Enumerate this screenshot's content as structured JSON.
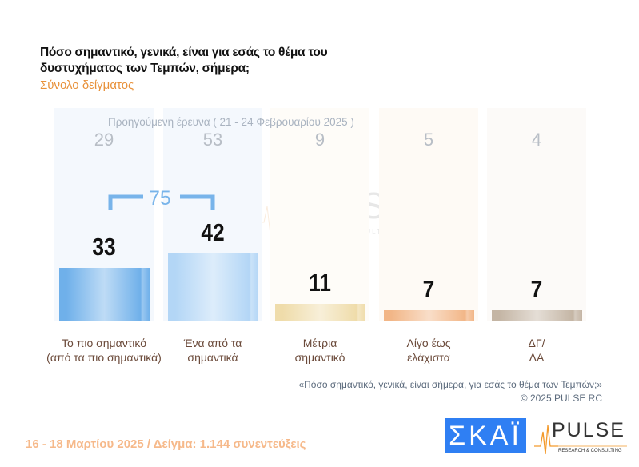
{
  "title": "Πόσο σημαντικό, γενικά, είναι για εσάς το θέμα του δυστυχήματος των Τεμπών, σήμερα;",
  "subtitle": "Σύνολο δείγματος",
  "chart_data": {
    "type": "bar",
    "title": "Πόσο σημαντικό, γενικά, είναι για εσάς το θέμα του δυστυχήματος των Τεμπών, σήμερα;",
    "categories": [
      [
        "Το πιο σημαντικό",
        "(από τα πιο σημαντικά)"
      ],
      [
        "Ένα από τα",
        "σημαντικά"
      ],
      [
        "Μέτρια",
        "σημαντικό"
      ],
      [
        "Λίγο έως",
        "ελάχιστα"
      ],
      [
        "ΔΓ/",
        "ΔΑ"
      ]
    ],
    "series": [
      {
        "name": "16 - 18 Μαρτίου 2025",
        "values": [
          33,
          42,
          11,
          7,
          7
        ]
      },
      {
        "name": "Προηγούμενη έρευνα ( 21 - 24 Φεβρουαρίου 2025 )",
        "values": [
          29,
          53,
          9,
          5,
          4
        ]
      }
    ],
    "previous_label": "Προηγούμενη έρευνα ( 21 - 24 Φεβρουαρίου 2025 )",
    "combined_first_two": "75",
    "colors": [
      "#6fb0ea",
      "#b3d6f6",
      "#efdcaa",
      "#f2b687",
      "#c4b5a4"
    ],
    "bg_colors": [
      "#f4f8fd",
      "#f4f8fd",
      "#fefcf8",
      "#fefaf5",
      "#fcfaf8"
    ],
    "ylim": [
      0,
      100
    ]
  },
  "note": {
    "question": "«Πόσο σημαντικό, γενικά, είναι σήμερα, για εσάς το θέμα των Τεμπών;»",
    "copyright": "©  2025  PULSE RC"
  },
  "footer": "16 - 18 Μαρτίου 2025  /  Δείγμα:  1.144 συνεντεύξεις",
  "logos": {
    "skai": "ΣΚΑΪ",
    "pulse": "PULSE",
    "pulse_sub": "RESEARCH & CONSULTING"
  }
}
